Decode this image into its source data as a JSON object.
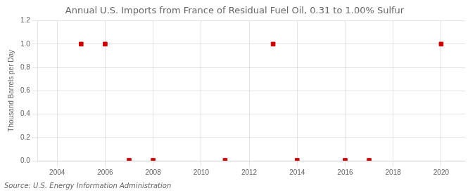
{
  "chart_data": {
    "type": "scatter",
    "title": "Annual U.S. Imports from France of Residual Fuel Oil, 0.31 to 1.00% Sulfur",
    "ylabel": "Thousand Barrels per Day",
    "source": "Source: U.S. Energy Information Administration",
    "x": [
      2005,
      2006,
      2007,
      2008,
      2011,
      2013,
      2014,
      2016,
      2017,
      2020
    ],
    "values": [
      1.0,
      1.0,
      0.003,
      0.003,
      0.003,
      1.0,
      0.003,
      0.003,
      0.003,
      1.0
    ],
    "color": "#cc0000",
    "marker": "square",
    "xlim": [
      2003.2,
      2021.0
    ],
    "ylim": [
      0.0,
      1.2
    ],
    "xticks": [
      2004,
      2006,
      2008,
      2010,
      2012,
      2014,
      2016,
      2018,
      2020
    ],
    "yticks": [
      {
        "value": 0.0,
        "label": "0.0"
      },
      0.2,
      0.4,
      0.6,
      0.8,
      {
        "value": 1.0,
        "label": "1.0"
      },
      1.2
    ],
    "grid": true
  }
}
